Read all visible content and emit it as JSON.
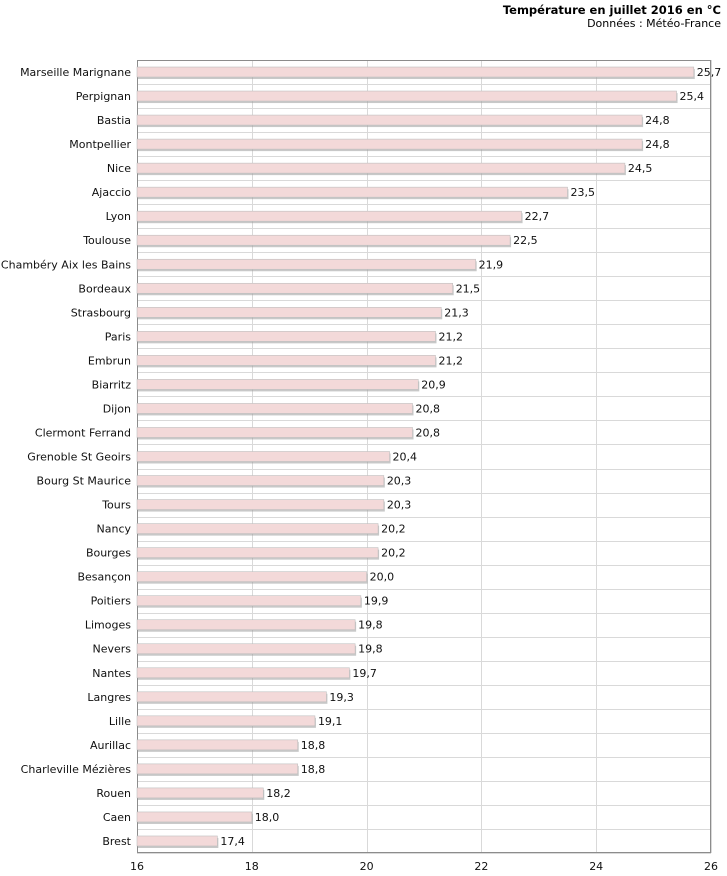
{
  "chart_data": {
    "type": "bar",
    "orientation": "horizontal",
    "title": "Température en juillet 2016 en °C",
    "subtitle": "Données : Météo-France",
    "categories": [
      "Marseille Marignane",
      "Perpignan",
      "Bastia",
      "Montpellier",
      "Nice",
      "Ajaccio",
      "Lyon",
      "Toulouse",
      "Chambéry Aix les Bains",
      "Bordeaux",
      "Strasbourg",
      "Paris",
      "Embrun",
      "Biarritz",
      "Dijon",
      "Clermont Ferrand",
      "Grenoble St Geoirs",
      "Bourg St Maurice",
      "Tours",
      "Nancy",
      "Bourges",
      "Besançon",
      "Poitiers",
      "Limoges",
      "Nevers",
      "Nantes",
      "Langres",
      "Lille",
      "Aurillac",
      "Charleville Mézières",
      "Rouen",
      "Caen",
      "Brest"
    ],
    "values": [
      25.7,
      25.4,
      24.8,
      24.8,
      24.5,
      23.5,
      22.7,
      22.5,
      21.9,
      21.5,
      21.3,
      21.2,
      21.2,
      20.9,
      20.8,
      20.8,
      20.4,
      20.3,
      20.3,
      20.2,
      20.2,
      20.0,
      19.9,
      19.8,
      19.8,
      19.7,
      19.3,
      19.1,
      18.8,
      18.8,
      18.2,
      18.0,
      17.4
    ],
    "value_labels": [
      "25,7",
      "25,4",
      "24,8",
      "24,8",
      "24,5",
      "23,5",
      "22,7",
      "22,5",
      "21,9",
      "21,5",
      "21,3",
      "21,2",
      "21,2",
      "20,9",
      "20,8",
      "20,8",
      "20,4",
      "20,3",
      "20,3",
      "20,2",
      "20,2",
      "20,0",
      "19,9",
      "19,8",
      "19,8",
      "19,7",
      "19,3",
      "19,1",
      "18,8",
      "18,8",
      "18,2",
      "18,0",
      "17,4"
    ],
    "xlim": [
      16,
      26
    ],
    "x_ticks": [
      "16",
      "18",
      "20",
      "22",
      "24",
      "26"
    ],
    "grid": true,
    "bar_color": "#f3d9d9",
    "bar_border_color": "#bfbfbf",
    "grid_color": "#d9d9d9"
  }
}
